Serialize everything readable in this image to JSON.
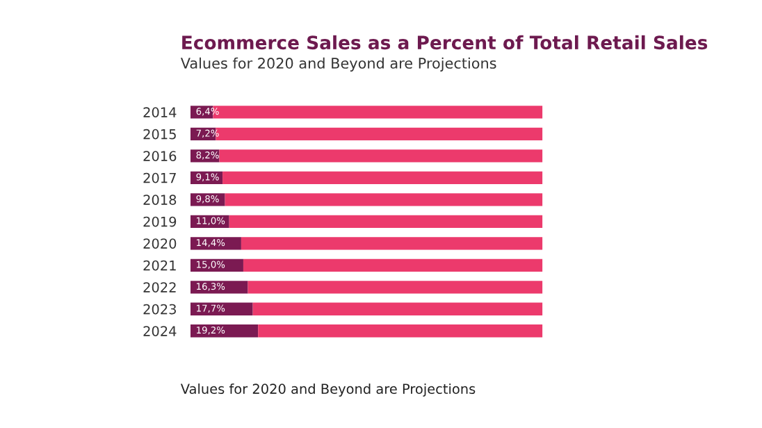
{
  "chart_data": {
    "type": "bar",
    "orientation": "horizontal",
    "stacked": true,
    "title": "Ecommerce Sales as a Percent of Total Retail Sales",
    "subtitle": "Values for 2020 and Beyond are Projections",
    "annotations": [
      "Values for 2020 and Beyond are Projections"
    ],
    "categories": [
      "2014",
      "2015",
      "2016",
      "2017",
      "2018",
      "2019",
      "2020",
      "2021",
      "2022",
      "2023",
      "2024"
    ],
    "series": [
      {
        "color": "#7b1a52",
        "values": [
          6.4,
          7.2,
          8.2,
          9.1,
          9.8,
          11.0,
          14.4,
          15.0,
          16.3,
          17.7,
          19.2
        ],
        "value_labels": [
          "6,4%",
          "7,2%",
          "8,2%",
          "9,1%",
          "9,8%",
          "11,0%",
          "14,4%",
          "15,0%",
          "16,3%",
          "17,7%",
          "19,2%"
        ]
      },
      {
        "color": "#ec3a6c",
        "values": [
          93.6,
          92.8,
          91.8,
          90.9,
          90.2,
          89.0,
          85.6,
          85.0,
          83.7,
          82.3,
          80.8
        ]
      }
    ],
    "xlim": [
      0,
      100
    ],
    "tick_labels": "y",
    "grid": false,
    "legend": false
  }
}
